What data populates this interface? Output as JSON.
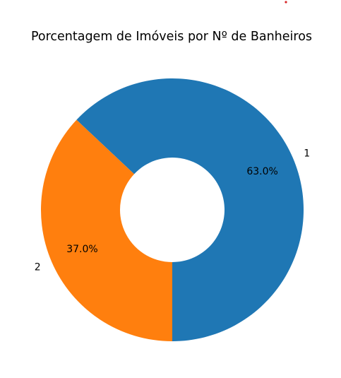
{
  "chart_data": {
    "type": "pie",
    "variant": "donut",
    "title": "Porcentagem de Imóveis por Nº de Banheiros",
    "categories": [
      "1",
      "2"
    ],
    "values": [
      63.0,
      37.0
    ],
    "percent_labels": [
      "63.0%",
      "37.0%"
    ],
    "colors": [
      "#1f77b4",
      "#ff7f0e"
    ],
    "start_angle_deg": -90,
    "direction": "counterclockwise",
    "legend": "none"
  }
}
